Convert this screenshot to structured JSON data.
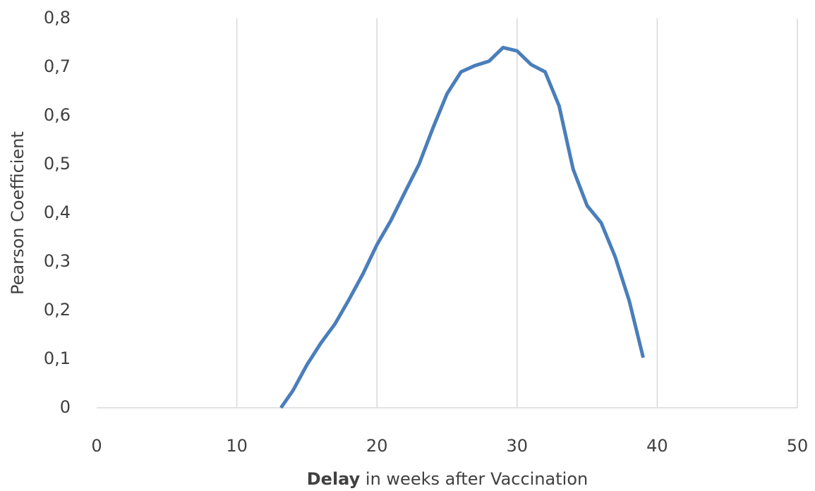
{
  "chart_data": {
    "type": "line",
    "xlabel_bold": "Delay",
    "xlabel": "in weeks after Vaccination",
    "ylabel": "Pearson Coefficient",
    "series": [
      {
        "name": "Pearson Coefficient",
        "color": "#4a7ebb",
        "x": [
          13.15,
          14,
          15,
          16,
          17,
          18,
          19,
          20,
          21,
          22,
          23,
          24,
          25,
          26,
          27,
          28,
          29,
          30,
          31,
          32,
          33,
          34,
          35,
          36,
          37,
          38,
          39
        ],
        "values": [
          0,
          0.035,
          0.088,
          0.133,
          0.172,
          0.222,
          0.275,
          0.335,
          0.385,
          0.443,
          0.5,
          0.575,
          0.645,
          0.69,
          0.703,
          0.712,
          0.74,
          0.733,
          0.705,
          0.69,
          0.62,
          0.49,
          0.415,
          0.38,
          0.31,
          0.22,
          0.103
        ]
      }
    ],
    "xlim": [
      0,
      50
    ],
    "xticks": [
      0,
      10,
      20,
      30,
      40,
      50
    ],
    "ylim": [
      0,
      0.8
    ],
    "yticks": [
      0,
      {
        "value": 0.1,
        "label": "0,1"
      },
      {
        "value": 0.2,
        "label": "0,2"
      },
      {
        "value": 0.3,
        "label": "0,3"
      },
      {
        "value": 0.4,
        "label": "0,4"
      },
      {
        "value": 0.5,
        "label": "0,5"
      },
      {
        "value": 0.6,
        "label": "0,6"
      },
      {
        "value": 0.7,
        "label": "0,7"
      },
      {
        "value": 0.8,
        "label": "0,8"
      }
    ],
    "xgrid": true
  }
}
